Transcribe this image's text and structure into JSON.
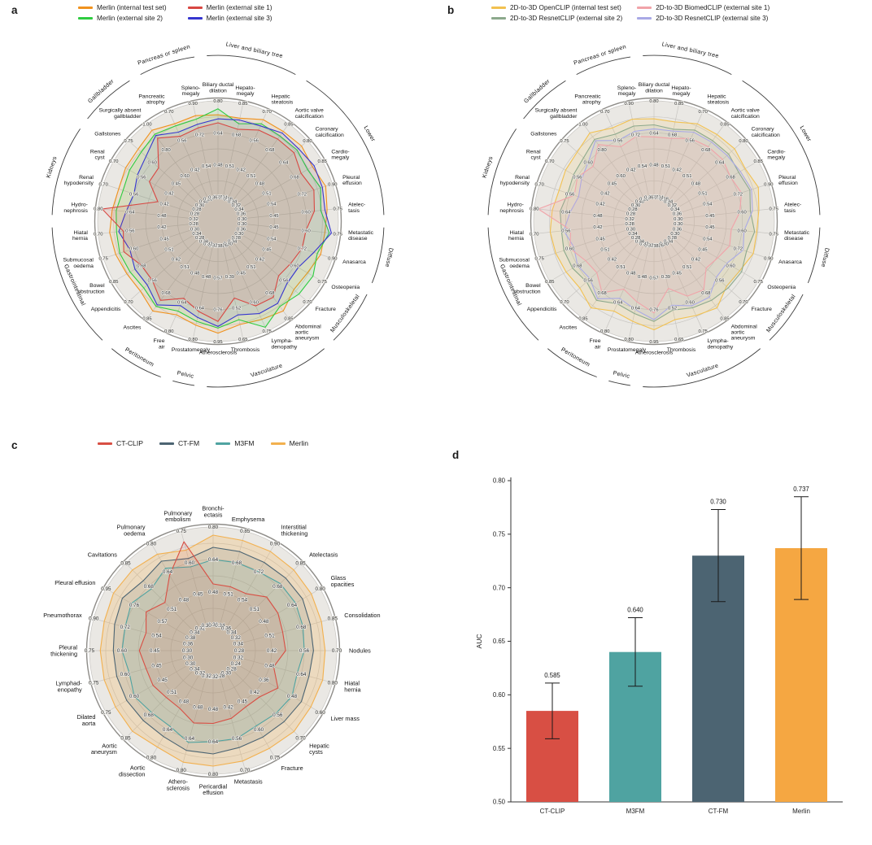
{
  "panels": {
    "a": {
      "letter": "a"
    },
    "b": {
      "letter": "b"
    },
    "c": {
      "letter": "c"
    },
    "d": {
      "letter": "d"
    }
  },
  "chart_data": [
    {
      "id": "a",
      "type": "radar",
      "min_ratio": 0.4,
      "rings": 6,
      "legend": [
        {
          "label": "Merlin (internal test set)",
          "color": "#f0921e"
        },
        {
          "label": "Merlin (external site 1)",
          "color": "#d84742"
        },
        {
          "label": "Merlin (external site 2)",
          "color": "#2ecc40"
        },
        {
          "label": "Merlin (external site 3)",
          "color": "#3636cf"
        }
      ],
      "groups": [
        {
          "label": "Liver and biliary tree",
          "from": 0,
          "to": 2
        },
        {
          "label": "Lower",
          "from": 3,
          "to": 7
        },
        {
          "label": "Diffuse",
          "from": 8,
          "to": 9
        },
        {
          "label": "Musculoskeletal",
          "from": 10,
          "to": 11
        },
        {
          "label": "Vasculature",
          "from": 12,
          "to": 15
        },
        {
          "label": "Pelvic",
          "from": 16,
          "to": 16
        },
        {
          "label": "Peritoneum",
          "from": 17,
          "to": 18
        },
        {
          "label": "Gastrointestinal",
          "from": 19,
          "to": 22
        },
        {
          "label": "Kidneys",
          "from": 23,
          "to": 25
        },
        {
          "label": "Gallbladder",
          "from": 26,
          "to": 27
        },
        {
          "label": "Pancreas or spleen",
          "from": 28,
          "to": 29
        }
      ],
      "axes": [
        {
          "label": "Biliary ductal\ndilation",
          "max": 0.8
        },
        {
          "label": "Hepato-\nmegaly",
          "max": 0.85
        },
        {
          "label": "Hepatic\nsteatosis",
          "max": 0.7
        },
        {
          "label": "Aortic valve\ncalcification",
          "max": 0.85
        },
        {
          "label": "Coronary\ncalcification",
          "max": 0.8
        },
        {
          "label": "Cardio-\nmegaly",
          "max": 0.85
        },
        {
          "label": "Pleural\neffusion",
          "max": 0.9
        },
        {
          "label": "Atelec-\ntasis",
          "max": 0.75
        },
        {
          "label": "Metastatic\ndisease",
          "max": 0.75
        },
        {
          "label": "Anasarca",
          "max": 0.9
        },
        {
          "label": "Osteopenia",
          "max": 0.75
        },
        {
          "label": "Fracture",
          "max": 0.7
        },
        {
          "label": "Abdominal\naortic\naneurysm",
          "max": 0.85
        },
        {
          "label": "Lympha-\ndenopathy",
          "max": 0.75
        },
        {
          "label": "Thrombosis",
          "max": 0.65
        },
        {
          "label": "Atherosclerosis",
          "max": 0.95
        },
        {
          "label": "Prostatomegaly",
          "max": 0.8
        },
        {
          "label": "Free\nair",
          "max": 0.8
        },
        {
          "label": "Ascites",
          "max": 0.85
        },
        {
          "label": "Appendicitis",
          "max": 0.7
        },
        {
          "label": "Bowel\nobstruction",
          "max": 0.85
        },
        {
          "label": "Submucosal\noedema",
          "max": 0.75
        },
        {
          "label": "Hiatal\nhernia",
          "max": 0.7
        },
        {
          "label": "Hydro-\nnephrosis",
          "max": 0.8
        },
        {
          "label": "Renal\nhypodensity",
          "max": 0.7
        },
        {
          "label": "Renal\ncyst",
          "max": 0.7
        },
        {
          "label": "Gallstones",
          "max": 0.75
        },
        {
          "label": "Surgically absent\ngallbladder",
          "max": 1.0
        },
        {
          "label": "Pancreatic\natrophy",
          "max": 0.7
        },
        {
          "label": "Spleno-\nmegaly",
          "max": 0.9
        }
      ],
      "series": [
        {
          "name": "Merlin (internal test set)",
          "color": "#f0921e",
          "fill_opacity": 0.1,
          "values": [
            0.73,
            0.77,
            0.66,
            0.8,
            0.76,
            0.79,
            0.86,
            0.7,
            0.69,
            0.83,
            0.67,
            0.62,
            0.8,
            0.69,
            0.59,
            0.9,
            0.73,
            0.71,
            0.8,
            0.63,
            0.77,
            0.69,
            0.65,
            0.73,
            0.63,
            0.64,
            0.69,
            0.95,
            0.64,
            0.83
          ]
        },
        {
          "name": "Merlin (external site 2)",
          "color": "#2ecc40",
          "fill_opacity": 0.1,
          "values": [
            0.76,
            0.74,
            0.64,
            0.77,
            0.73,
            0.76,
            0.83,
            0.67,
            0.71,
            0.81,
            0.7,
            0.65,
            0.77,
            0.73,
            0.57,
            0.87,
            0.71,
            0.69,
            0.77,
            0.61,
            0.75,
            0.67,
            0.62,
            0.71,
            0.61,
            0.62,
            0.67,
            0.92,
            0.63,
            0.81
          ]
        },
        {
          "name": "Merlin (external site 3)",
          "color": "#3636cf",
          "fill_opacity": 0.08,
          "values": [
            0.71,
            0.76,
            0.63,
            0.79,
            0.74,
            0.8,
            0.84,
            0.69,
            0.72,
            0.79,
            0.62,
            0.58,
            0.75,
            0.66,
            0.55,
            0.86,
            0.69,
            0.66,
            0.76,
            0.59,
            0.72,
            0.62,
            0.61,
            0.66,
            0.56,
            0.58,
            0.64,
            0.91,
            0.6,
            0.78
          ]
        },
        {
          "name": "Merlin (external site 1)",
          "color": "#d84742",
          "fill_opacity": 0.1,
          "values": [
            0.69,
            0.71,
            0.61,
            0.75,
            0.71,
            0.72,
            0.79,
            0.64,
            0.6,
            0.72,
            0.58,
            0.53,
            0.71,
            0.62,
            0.48,
            0.83,
            0.66,
            0.62,
            0.73,
            0.56,
            0.68,
            0.65,
            0.59,
            0.78,
            0.45,
            0.52,
            0.56,
            0.89,
            0.58,
            0.76
          ]
        }
      ]
    },
    {
      "id": "b",
      "type": "radar",
      "min_ratio": 0.4,
      "rings": 6,
      "legend": [
        {
          "label": "2D-to-3D OpenCLIP (internal test set)",
          "color": "#f2c150"
        },
        {
          "label": "2D-to-3D BiomedCLIP (external site 1)",
          "color": "#f1a3a9"
        },
        {
          "label": "2D-to-3D ResnetCLIP (external site 2)",
          "color": "#8ca98c"
        },
        {
          "label": "2D-to-3D ResnetCLIP (external site 3)",
          "color": "#a9a9e6"
        }
      ],
      "groups": [
        {
          "label": "Liver and biliary tree",
          "from": 0,
          "to": 2
        },
        {
          "label": "Lower",
          "from": 3,
          "to": 7
        },
        {
          "label": "Diffuse",
          "from": 8,
          "to": 9
        },
        {
          "label": "Musculoskeletal",
          "from": 10,
          "to": 11
        },
        {
          "label": "Vasculature",
          "from": 12,
          "to": 15
        },
        {
          "label": "Pelvic",
          "from": 16,
          "to": 16
        },
        {
          "label": "Peritoneum",
          "from": 17,
          "to": 18
        },
        {
          "label": "Gastrointestinal",
          "from": 19,
          "to": 22
        },
        {
          "label": "Kidneys",
          "from": 23,
          "to": 25
        },
        {
          "label": "Gallbladder",
          "from": 26,
          "to": 27
        },
        {
          "label": "Pancreas or spleen",
          "from": 28,
          "to": 29
        }
      ],
      "axes": [
        {
          "label": "Biliary ductal\ndilation",
          "max": 0.8
        },
        {
          "label": "Hepato-\nmegaly",
          "max": 0.85
        },
        {
          "label": "Hepatic\nsteatosis",
          "max": 0.7
        },
        {
          "label": "Aortic valve\ncalcification",
          "max": 0.85
        },
        {
          "label": "Coronary\ncalcification",
          "max": 0.8
        },
        {
          "label": "Cardio-\nmegaly",
          "max": 0.85
        },
        {
          "label": "Pleural\neffusion",
          "max": 0.9
        },
        {
          "label": "Atelec-\ntasis",
          "max": 0.75
        },
        {
          "label": "Metastatic\ndisease",
          "max": 0.75
        },
        {
          "label": "Anasarca",
          "max": 0.9
        },
        {
          "label": "Osteopenia",
          "max": 0.75
        },
        {
          "label": "Fracture",
          "max": 0.7
        },
        {
          "label": "Abdominal\naortic\naneurysm",
          "max": 0.85
        },
        {
          "label": "Lympha-\ndenopathy",
          "max": 0.75
        },
        {
          "label": "Thrombosis",
          "max": 0.65
        },
        {
          "label": "Atherosclerosis",
          "max": 0.95
        },
        {
          "label": "Prostatomegaly",
          "max": 0.8
        },
        {
          "label": "Free\nair",
          "max": 0.8
        },
        {
          "label": "Ascites",
          "max": 0.85
        },
        {
          "label": "Appendicitis",
          "max": 0.7
        },
        {
          "label": "Bowel\nobstruction",
          "max": 0.85
        },
        {
          "label": "Submucosal\noedema",
          "max": 0.75
        },
        {
          "label": "Hiatal\nhernia",
          "max": 0.7
        },
        {
          "label": "Hydro-\nnephrosis",
          "max": 0.8
        },
        {
          "label": "Renal\nhypodensity",
          "max": 0.7
        },
        {
          "label": "Renal\ncyst",
          "max": 0.7
        },
        {
          "label": "Gallstones",
          "max": 0.75
        },
        {
          "label": "Surgically absent\ngallbladder",
          "max": 1.0
        },
        {
          "label": "Pancreatic\natrophy",
          "max": 0.7
        },
        {
          "label": "Spleno-\nmegaly",
          "max": 0.9
        }
      ],
      "series": [
        {
          "name": "2D-to-3D OpenCLIP (internal test set)",
          "color": "#f2c150",
          "fill_opacity": 0.15,
          "values": [
            0.71,
            0.75,
            0.64,
            0.78,
            0.74,
            0.77,
            0.84,
            0.68,
            0.67,
            0.81,
            0.65,
            0.6,
            0.78,
            0.67,
            0.57,
            0.88,
            0.71,
            0.69,
            0.78,
            0.61,
            0.75,
            0.67,
            0.63,
            0.71,
            0.61,
            0.62,
            0.67,
            0.93,
            0.62,
            0.81
          ]
        },
        {
          "name": "2D-to-3D ResnetCLIP (external site 2)",
          "color": "#8ca98c",
          "fill_opacity": 0.1,
          "values": [
            0.68,
            0.71,
            0.61,
            0.74,
            0.7,
            0.73,
            0.79,
            0.64,
            0.66,
            0.77,
            0.66,
            0.61,
            0.73,
            0.63,
            0.53,
            0.83,
            0.67,
            0.65,
            0.73,
            0.57,
            0.71,
            0.63,
            0.58,
            0.67,
            0.57,
            0.58,
            0.63,
            0.88,
            0.59,
            0.77
          ]
        },
        {
          "name": "2D-to-3D ResnetCLIP (external site 3)",
          "color": "#a9a9e6",
          "fill_opacity": 0.1,
          "values": [
            0.66,
            0.7,
            0.6,
            0.73,
            0.69,
            0.74,
            0.8,
            0.65,
            0.61,
            0.75,
            0.58,
            0.54,
            0.71,
            0.62,
            0.51,
            0.82,
            0.65,
            0.62,
            0.72,
            0.55,
            0.68,
            0.58,
            0.57,
            0.62,
            0.52,
            0.54,
            0.6,
            0.87,
            0.56,
            0.74
          ]
        },
        {
          "name": "2D-to-3D BiomedCLIP (external site 1)",
          "color": "#f1a3a9",
          "fill_opacity": 0.13,
          "values": [
            0.62,
            0.66,
            0.57,
            0.7,
            0.66,
            0.68,
            0.74,
            0.59,
            0.55,
            0.67,
            0.53,
            0.48,
            0.66,
            0.57,
            0.44,
            0.78,
            0.61,
            0.57,
            0.68,
            0.51,
            0.63,
            0.6,
            0.54,
            0.78,
            0.54,
            0.56,
            0.57,
            0.84,
            0.53,
            0.71
          ]
        }
      ]
    },
    {
      "id": "c",
      "type": "radar",
      "min_ratio": 0.4,
      "rings": 6,
      "legend": [
        {
          "label": "CT-CLIP",
          "color": "#d84f44"
        },
        {
          "label": "CT-FM",
          "color": "#4c6472"
        },
        {
          "label": "M3FM",
          "color": "#4fa3a1"
        },
        {
          "label": "Merlin",
          "color": "#f2b04e"
        }
      ],
      "groups": [],
      "axes": [
        {
          "label": "Bronchi-\nectasis",
          "max": 0.8
        },
        {
          "label": "Emphysema",
          "max": 0.85
        },
        {
          "label": "Interstitial\nthickening",
          "max": 0.9
        },
        {
          "label": "Atelectasis",
          "max": 0.85
        },
        {
          "label": "Glass\nopacities",
          "max": 0.8
        },
        {
          "label": "Consolidation",
          "max": 0.85
        },
        {
          "label": "Nodules",
          "max": 0.7
        },
        {
          "label": "Hiatal\nhernia",
          "max": 0.8
        },
        {
          "label": "Liver mass",
          "max": 0.6
        },
        {
          "label": "Hepatic\ncysts",
          "max": 0.7
        },
        {
          "label": "Fracture",
          "max": 0.75
        },
        {
          "label": "Metastasis",
          "max": 0.7
        },
        {
          "label": "Pericardial\neffusion",
          "max": 0.8
        },
        {
          "label": "Athero-\nsclerosis",
          "max": 0.8
        },
        {
          "label": "Aortic\ndissection",
          "max": 0.8
        },
        {
          "label": "Aortic\naneurysm",
          "max": 0.85
        },
        {
          "label": "Dilated\naorta",
          "max": 0.75
        },
        {
          "label": "Lymphad-\nenopathy",
          "max": 0.75
        },
        {
          "label": "Pleural\nthickening",
          "max": 0.75
        },
        {
          "label": "Pneumothorax",
          "max": 0.9
        },
        {
          "label": "Pleural effusion",
          "max": 0.95
        },
        {
          "label": "Cavitations",
          "max": 0.85
        },
        {
          "label": "Pulmonary\noedema",
          "max": 0.8
        },
        {
          "label": "Pulmonary\nembolism",
          "max": 0.75
        }
      ],
      "series": [
        {
          "name": "Merlin",
          "color": "#f2b04e",
          "fill_opacity": 0.25,
          "values": [
            0.76,
            0.8,
            0.85,
            0.8,
            0.75,
            0.79,
            0.65,
            0.75,
            0.56,
            0.66,
            0.7,
            0.66,
            0.76,
            0.76,
            0.74,
            0.8,
            0.7,
            0.7,
            0.7,
            0.84,
            0.9,
            0.8,
            0.74,
            0.66
          ]
        },
        {
          "name": "CT-FM",
          "color": "#4c6472",
          "fill_opacity": 0.12,
          "values": [
            0.7,
            0.74,
            0.78,
            0.74,
            0.7,
            0.73,
            0.6,
            0.68,
            0.52,
            0.6,
            0.64,
            0.6,
            0.7,
            0.7,
            0.68,
            0.72,
            0.64,
            0.64,
            0.64,
            0.78,
            0.84,
            0.72,
            0.7,
            0.62
          ]
        },
        {
          "name": "M3FM",
          "color": "#4fa3a1",
          "fill_opacity": 0.12,
          "values": [
            0.64,
            0.68,
            0.72,
            0.7,
            0.66,
            0.69,
            0.56,
            0.62,
            0.48,
            0.55,
            0.58,
            0.56,
            0.64,
            0.66,
            0.62,
            0.66,
            0.6,
            0.58,
            0.6,
            0.72,
            0.78,
            0.66,
            0.66,
            0.58
          ]
        },
        {
          "name": "CT-CLIP",
          "color": "#d84f44",
          "fill_opacity": 0.1,
          "values": [
            0.52,
            0.55,
            0.58,
            0.6,
            0.56,
            0.58,
            0.48,
            0.5,
            0.42,
            0.45,
            0.48,
            0.47,
            0.55,
            0.56,
            0.52,
            0.55,
            0.5,
            0.5,
            0.52,
            0.6,
            0.68,
            0.56,
            0.62,
            0.7
          ]
        }
      ]
    },
    {
      "id": "d",
      "type": "bar",
      "categories": [
        "CT-CLIP",
        "M3FM",
        "CT-FM",
        "Merlin"
      ],
      "values": [
        0.585,
        0.64,
        0.73,
        0.737
      ],
      "errors": [
        0.026,
        0.032,
        0.043,
        0.048
      ],
      "value_labels": [
        "0.585",
        "0.640",
        "0.730",
        "0.737"
      ],
      "colors": [
        "#d84f44",
        "#4fa3a1",
        "#4c6472",
        "#f5a742"
      ],
      "ylabel": "AUC",
      "ylim": [
        0.5,
        0.8
      ],
      "yticks": [
        "0.50",
        "0.55",
        "0.60",
        "0.65",
        "0.70",
        "0.75",
        "0.80"
      ]
    }
  ]
}
